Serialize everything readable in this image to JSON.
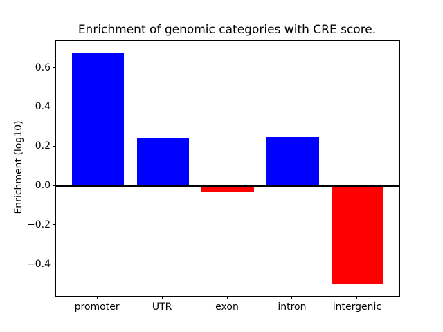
{
  "chart_data": {
    "type": "bar",
    "title": "Enrichment of genomic categories with CRE score.",
    "ylabel": "Enrichment (log10)",
    "xlabel": "",
    "categories": [
      "promoter",
      "UTR",
      "exon",
      "intron",
      "intergenic"
    ],
    "values": [
      0.68,
      0.245,
      -0.03,
      0.25,
      -0.5
    ],
    "bar_colors": [
      "#0000ff",
      "#0000ff",
      "#ff0000",
      "#0000ff",
      "#ff0000"
    ],
    "positive_color": "#0000ff",
    "negative_color": "#ff0000",
    "background_color": "#ffffff",
    "axis_color": "#000000",
    "ylim": [
      -0.559,
      0.739
    ],
    "xlim": [
      -0.64,
      4.64
    ],
    "bar_width_fraction": 0.8,
    "yticks": [
      {
        "value": 0.6,
        "label": "0.6"
      },
      {
        "value": 0.4,
        "label": "0.4"
      },
      {
        "value": 0.2,
        "label": "0.2"
      },
      {
        "value": 0.0,
        "label": "0.0"
      },
      {
        "value": -0.2,
        "label": "−0.2"
      },
      {
        "value": -0.4,
        "label": "−0.4"
      }
    ],
    "grid": false,
    "legend": null,
    "zero_line": true
  }
}
